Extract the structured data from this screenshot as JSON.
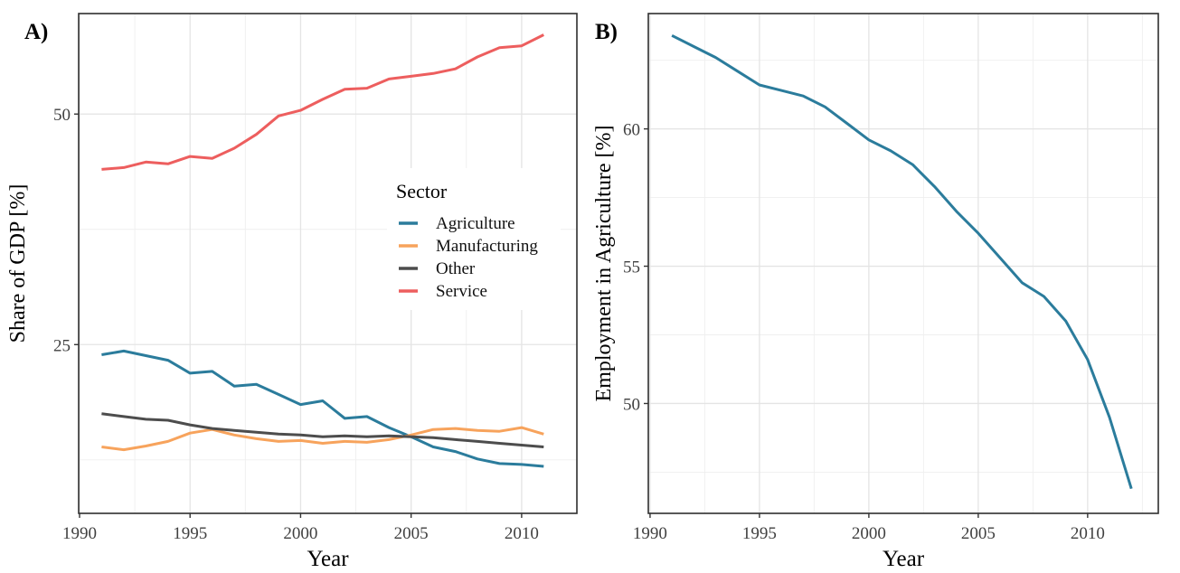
{
  "figure": {
    "background": "#ffffff",
    "grid_major_color": "#e4e4e4",
    "grid_minor_color": "#efefef",
    "border_color": "#2f2f2f",
    "tick_label_color": "#404040",
    "axis_title_color": "#000000"
  },
  "chart_data": [
    {
      "id": "panel-a",
      "type": "line",
      "panel_label": "A)",
      "xlabel": "Year",
      "ylabel": "Share of GDP [%]",
      "legend": {
        "title": "Sector"
      },
      "legend_position": "inside-right",
      "grid": true,
      "x": [
        1991,
        1992,
        1993,
        1994,
        1995,
        1996,
        1997,
        1998,
        1999,
        2000,
        2001,
        2002,
        2003,
        2004,
        2005,
        2006,
        2007,
        2008,
        2009,
        2010,
        2011
      ],
      "series": [
        {
          "name": "Agriculture",
          "color": "#2b7c9c",
          "values": [
            23.9,
            24.3,
            23.8,
            23.3,
            21.9,
            22.1,
            20.5,
            20.7,
            19.6,
            18.5,
            18.9,
            17.0,
            17.2,
            16.0,
            15.0,
            13.9,
            13.4,
            12.6,
            12.1,
            12.0,
            11.8
          ]
        },
        {
          "name": "Manufacturing",
          "color": "#f7a35c",
          "values": [
            13.9,
            13.6,
            14.0,
            14.5,
            15.4,
            15.8,
            15.2,
            14.8,
            14.5,
            14.6,
            14.3,
            14.5,
            14.4,
            14.7,
            15.2,
            15.8,
            15.9,
            15.7,
            15.6,
            16.0,
            15.3
          ]
        },
        {
          "name": "Other",
          "color": "#4d4d4d",
          "values": [
            17.5,
            17.2,
            16.9,
            16.8,
            16.3,
            15.9,
            15.7,
            15.5,
            15.3,
            15.2,
            15.0,
            15.1,
            15.0,
            15.1,
            15.0,
            14.9,
            14.7,
            14.5,
            14.3,
            14.1,
            13.9
          ]
        },
        {
          "name": "Service",
          "color": "#ed5e5e",
          "values": [
            44.0,
            44.2,
            44.8,
            44.6,
            45.4,
            45.2,
            46.3,
            47.8,
            49.8,
            50.4,
            51.6,
            52.7,
            52.8,
            53.8,
            54.1,
            54.4,
            54.9,
            56.2,
            57.2,
            57.4,
            58.6
          ]
        }
      ],
      "xticks": [
        1990,
        1995,
        2000,
        2005,
        2010
      ],
      "xminor": [
        1992.5,
        1997.5,
        2002.5,
        2007.5,
        2012.5
      ],
      "yticks": [
        25,
        50
      ],
      "yminor": [
        12.5,
        37.5
      ],
      "xlim": [
        1989.96,
        2012.5
      ],
      "ylim": [
        6.7,
        60.9
      ]
    },
    {
      "id": "panel-b",
      "type": "line",
      "panel_label": "B)",
      "xlabel": "Year",
      "ylabel": "Employment in Agriculture [%]",
      "legend": null,
      "legend_position": "none",
      "grid": true,
      "x": [
        1991,
        1992,
        1993,
        1994,
        1995,
        1996,
        1997,
        1998,
        1999,
        2000,
        2001,
        2002,
        2003,
        2004,
        2005,
        2006,
        2007,
        2008,
        2009,
        2010,
        2011,
        2012
      ],
      "series": [
        {
          "name": "Agriculture",
          "color": "#2b7c9c",
          "values": [
            63.4,
            63.0,
            62.6,
            62.1,
            61.6,
            61.4,
            61.2,
            60.8,
            60.2,
            59.6,
            59.2,
            58.7,
            57.9,
            57.0,
            56.2,
            55.3,
            54.4,
            53.9,
            53.0,
            51.6,
            49.5,
            46.9
          ]
        }
      ],
      "xticks": [
        1990,
        1995,
        2000,
        2005,
        2010
      ],
      "xminor": [
        1992.5,
        1997.5,
        2002.5,
        2007.5,
        2012.5
      ],
      "yticks": [
        50,
        55,
        60
      ],
      "yminor": [
        47.5,
        52.5,
        57.5,
        62.5
      ],
      "xlim": [
        1989.92,
        2013.23
      ],
      "ylim": [
        46.0,
        64.2
      ]
    }
  ]
}
